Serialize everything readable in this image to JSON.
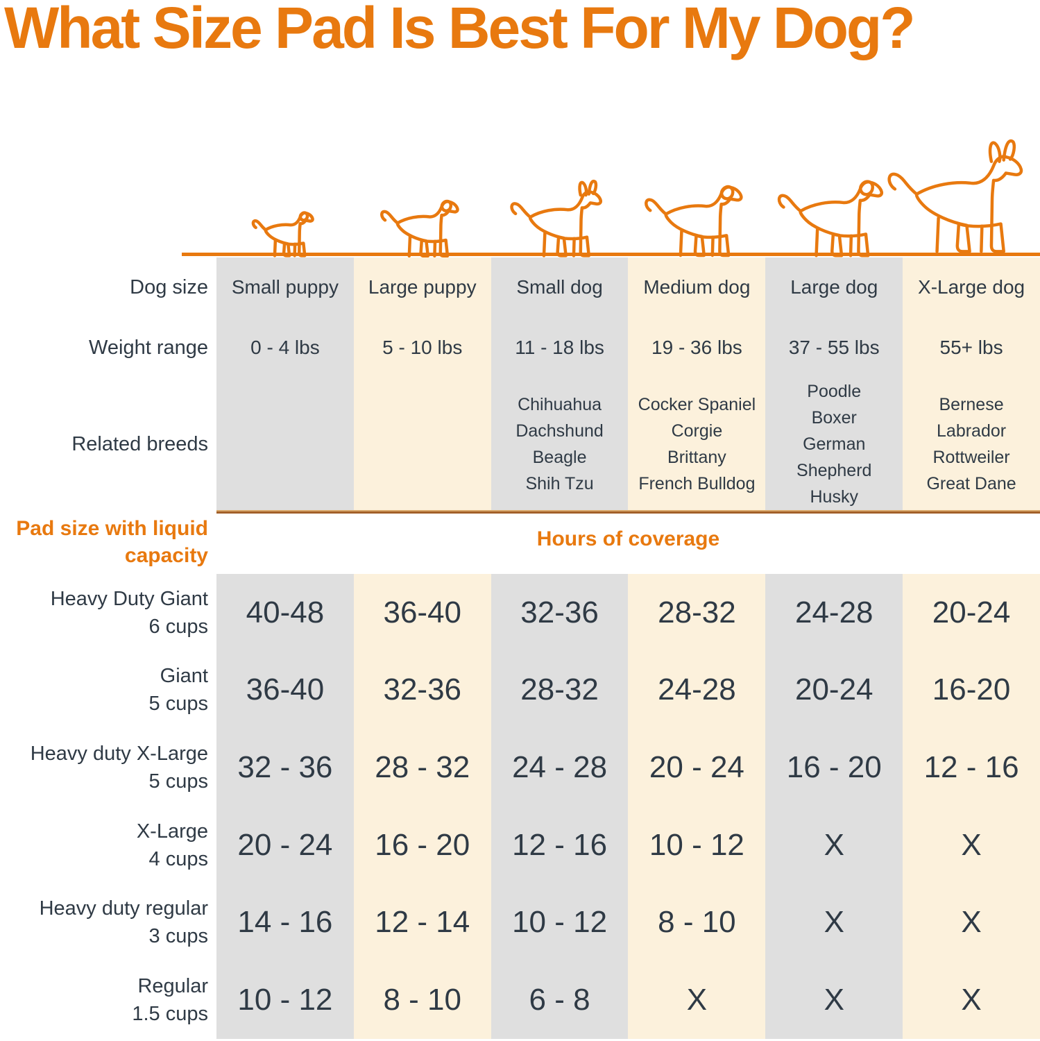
{
  "title": "What Size Pad Is Best For My Dog?",
  "row_labels": {
    "dog_size": "Dog size",
    "weight_range": "Weight range",
    "related_breeds": "Related breeds"
  },
  "section": {
    "pad_size_line1": "Pad size",
    "pad_size_line2": "with liquid capacity",
    "hours_header": "Hours of coverage"
  },
  "dog_icons": [
    "small-puppy",
    "large-puppy",
    "small-dog",
    "medium-dog",
    "large-dog",
    "x-large-dog"
  ],
  "colors": {
    "accent_orange": "#e8790f",
    "column_gray": "#dfdfdf",
    "column_cream": "#fcf1dc",
    "text_dark": "#2f3a45",
    "divider_brown": "#a2602a"
  },
  "chart_data": {
    "type": "table",
    "title": "What Size Pad Is Best For My Dog?",
    "columns": [
      "Small puppy",
      "Large puppy",
      "Small dog",
      "Medium dog",
      "Large dog",
      "X-Large dog"
    ],
    "weight_ranges": [
      "0 - 4 lbs",
      "5 - 10 lbs",
      "11 - 18 lbs",
      "19 - 36 lbs",
      "37 - 55 lbs",
      "55+ lbs"
    ],
    "related_breeds": [
      [],
      [],
      [
        "Chihuahua",
        "Dachshund",
        "Beagle",
        "Shih Tzu"
      ],
      [
        "Cocker Spaniel",
        "Corgie",
        "Brittany",
        "French Bulldog"
      ],
      [
        "Poodle",
        "Boxer",
        "German Shepherd",
        "Husky"
      ],
      [
        "Bernese",
        "Labrador",
        "Rottweiler",
        "Great Dane"
      ]
    ],
    "section_header": "Hours of coverage",
    "rows": [
      {
        "pad": "Heavy Duty Giant",
        "capacity": "6 cups",
        "hours": [
          "40-48",
          "36-40",
          "32-36",
          "28-32",
          "24-28",
          "20-24"
        ]
      },
      {
        "pad": "Giant",
        "capacity": "5 cups",
        "hours": [
          "36-40",
          "32-36",
          "28-32",
          "24-28",
          "20-24",
          "16-20"
        ]
      },
      {
        "pad": "Heavy duty X-Large",
        "capacity": "5 cups",
        "hours": [
          "32 - 36",
          "28 - 32",
          "24 - 28",
          "20 - 24",
          "16 - 20",
          "12 - 16"
        ]
      },
      {
        "pad": "X-Large",
        "capacity": "4 cups",
        "hours": [
          "20 - 24",
          "16 - 20",
          "12 - 16",
          "10 - 12",
          "X",
          "X"
        ]
      },
      {
        "pad": "Heavy duty regular",
        "capacity": "3 cups",
        "hours": [
          "14 - 16",
          "12 - 14",
          "10 - 12",
          "8 - 10",
          "X",
          "X"
        ]
      },
      {
        "pad": "Regular",
        "capacity": "1.5 cups",
        "hours": [
          "10 - 12",
          "8 - 10",
          "6 - 8",
          "X",
          "X",
          "X"
        ]
      }
    ]
  }
}
